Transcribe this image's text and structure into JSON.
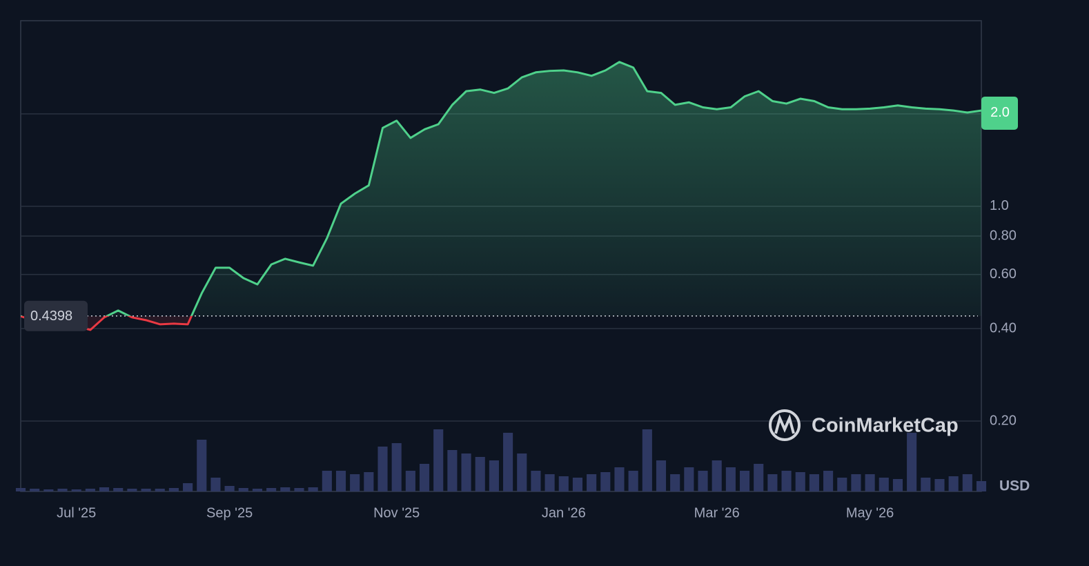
{
  "chart_data": {
    "type": "line",
    "categories": [
      null,
      null,
      null,
      null,
      "Jul '25",
      null,
      null,
      null,
      null,
      null,
      null,
      null,
      null,
      null,
      null,
      "Sep '25",
      null,
      null,
      null,
      null,
      null,
      null,
      null,
      null,
      null,
      null,
      null,
      "Nov '25",
      null,
      null,
      null,
      null,
      null,
      null,
      null,
      null,
      null,
      null,
      null,
      "Jan '26",
      null,
      null,
      null,
      null,
      null,
      null,
      null,
      null,
      null,
      null,
      "Mar '26",
      null,
      null,
      null,
      null,
      null,
      null,
      null,
      null,
      null,
      null,
      "May '26",
      null,
      null,
      null,
      null,
      null,
      null,
      null,
      null
    ],
    "values": [
      0.439,
      0.423,
      0.417,
      0.413,
      0.408,
      0.396,
      0.435,
      0.458,
      0.435,
      0.426,
      0.413,
      0.415,
      0.413,
      0.521,
      0.631,
      0.631,
      0.584,
      0.557,
      0.647,
      0.675,
      0.657,
      0.641,
      0.788,
      1.02,
      1.1,
      1.17,
      1.8,
      1.9,
      1.67,
      1.78,
      1.85,
      2.14,
      2.37,
      2.4,
      2.34,
      2.42,
      2.63,
      2.73,
      2.76,
      2.77,
      2.73,
      2.66,
      2.77,
      2.95,
      2.83,
      2.37,
      2.34,
      2.14,
      2.18,
      2.1,
      2.07,
      2.1,
      2.28,
      2.37,
      2.2,
      2.16,
      2.24,
      2.2,
      2.1,
      2.07,
      2.07,
      2.08,
      2.1,
      2.13,
      2.1,
      2.08,
      2.07,
      2.05,
      2.02,
      2.05
    ],
    "volume": [
      5,
      4,
      3,
      4,
      3,
      4,
      6,
      5,
      4,
      4,
      4,
      5,
      12,
      75,
      20,
      8,
      5,
      4,
      5,
      6,
      5,
      6,
      30,
      30,
      25,
      28,
      65,
      70,
      30,
      40,
      90,
      60,
      55,
      50,
      45,
      85,
      55,
      30,
      25,
      22,
      20,
      25,
      28,
      35,
      30,
      90,
      45,
      25,
      35,
      30,
      45,
      35,
      30,
      40,
      25,
      30,
      28,
      25,
      30,
      20,
      25,
      25,
      20,
      18,
      85,
      20,
      18,
      22,
      25,
      15
    ],
    "baseline": 0.4398,
    "up_color": "#4fd18b",
    "down_color": "#ea3943",
    "volume_color": "#2e3862",
    "log_scale": true,
    "ylim": [
      0.118,
      4.02
    ],
    "yticks": [
      {
        "value": 0.2,
        "label": "0.20"
      },
      {
        "value": 0.4,
        "label": "0.40"
      },
      {
        "value": 0.6,
        "label": "0.60"
      },
      {
        "value": 0.8,
        "label": "0.80"
      },
      {
        "value": 1,
        "label": "1.0"
      },
      {
        "value": 2,
        "label": "2.0"
      }
    ],
    "grid": true,
    "currency": "USD",
    "watermark": "CoinMarketCap"
  }
}
